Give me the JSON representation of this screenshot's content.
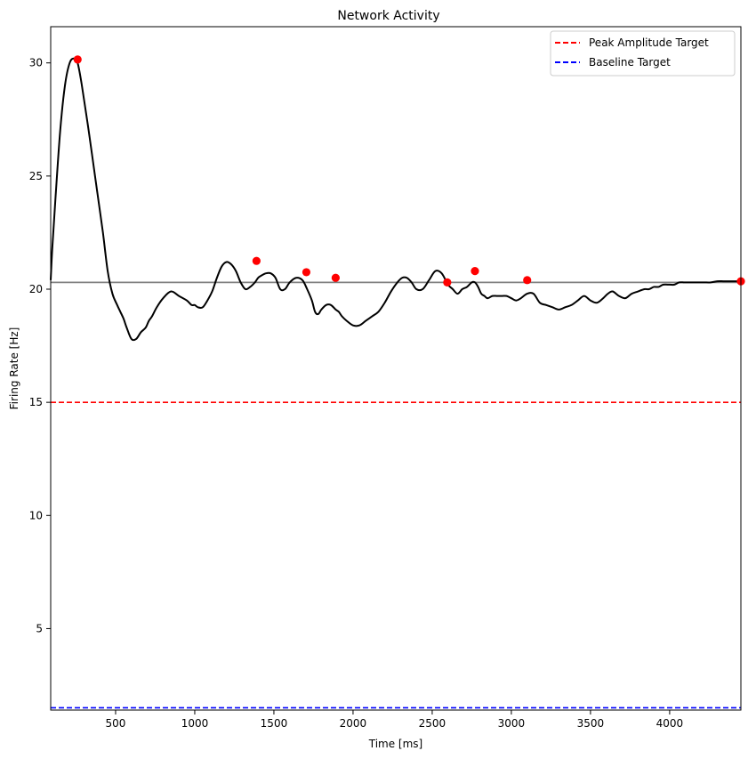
{
  "chart_data": {
    "type": "line",
    "title": "Network Activity",
    "xlabel": "Time [ms]",
    "ylabel": "Firing Rate [Hz]",
    "xlim": [
      90,
      4450
    ],
    "ylim": [
      1.4,
      31.6
    ],
    "xticks": [
      500,
      1000,
      1500,
      2000,
      2500,
      3000,
      3500,
      4000
    ],
    "yticks": [
      5,
      10,
      15,
      20,
      25,
      30
    ],
    "grid": false,
    "legend_position": "top-right",
    "series": [
      {
        "x": [
          90,
          100,
          120,
          150,
          180,
          210,
          240,
          260,
          280,
          300,
          330,
          360,
          390,
          420,
          450,
          480,
          510,
          530,
          550,
          570,
          600,
          630,
          660,
          690,
          710,
          730,
          760,
          800,
          850,
          900,
          950,
          980,
          1000,
          1020,
          1050,
          1080,
          1110,
          1140,
          1170,
          1200,
          1230,
          1260,
          1290,
          1320,
          1350,
          1380,
          1400,
          1420,
          1450,
          1480,
          1510,
          1540,
          1570,
          1600,
          1640,
          1680,
          1710,
          1740,
          1760,
          1780,
          1800,
          1830,
          1860,
          1890,
          1910,
          1930,
          1960,
          2000,
          2040,
          2080,
          2120,
          2160,
          2200,
          2240,
          2280,
          2310,
          2340,
          2370,
          2400,
          2440,
          2480,
          2520,
          2560,
          2600,
          2630,
          2660,
          2690,
          2720,
          2750,
          2770,
          2790,
          2810,
          2830,
          2850,
          2880,
          2910,
          2940,
          2970,
          3000,
          3030,
          3060,
          3100,
          3140,
          3180,
          3220,
          3260,
          3300,
          3340,
          3380,
          3420,
          3460,
          3500,
          3540,
          3580,
          3610,
          3640,
          3680,
          3720,
          3760,
          3800,
          3840,
          3870,
          3900,
          3930,
          3960,
          4000,
          4030,
          4060,
          4090,
          4110,
          4130,
          4160,
          4190,
          4220,
          4260,
          4300,
          4340,
          4380,
          4420,
          4450
        ],
        "values": [
          20.4,
          21.8,
          24.0,
          27.0,
          29.0,
          30.0,
          30.2,
          30.0,
          29.3,
          28.4,
          27.0,
          25.5,
          24.0,
          22.5,
          20.8,
          19.8,
          19.3,
          19.0,
          18.7,
          18.3,
          17.8,
          17.8,
          18.1,
          18.3,
          18.6,
          18.8,
          19.2,
          19.6,
          19.9,
          19.7,
          19.5,
          19.3,
          19.3,
          19.2,
          19.2,
          19.5,
          19.9,
          20.5,
          21.0,
          21.2,
          21.1,
          20.8,
          20.3,
          20.0,
          20.1,
          20.3,
          20.5,
          20.6,
          20.7,
          20.7,
          20.5,
          20.0,
          20.0,
          20.3,
          20.5,
          20.4,
          20.0,
          19.5,
          19.0,
          18.9,
          19.1,
          19.3,
          19.3,
          19.1,
          19.0,
          18.8,
          18.6,
          18.4,
          18.4,
          18.6,
          18.8,
          19.0,
          19.4,
          19.9,
          20.3,
          20.5,
          20.5,
          20.3,
          20.0,
          20.0,
          20.4,
          20.8,
          20.7,
          20.2,
          20.0,
          19.8,
          20.0,
          20.1,
          20.3,
          20.3,
          20.1,
          19.8,
          19.7,
          19.6,
          19.7,
          19.7,
          19.7,
          19.7,
          19.6,
          19.5,
          19.6,
          19.8,
          19.8,
          19.4,
          19.3,
          19.2,
          19.1,
          19.2,
          19.3,
          19.5,
          19.7,
          19.5,
          19.4,
          19.6,
          19.8,
          19.9,
          19.7,
          19.6,
          19.8,
          19.9,
          20.0,
          20.0,
          20.1,
          20.1,
          20.2,
          20.2,
          20.2,
          20.3,
          20.3,
          20.3,
          20.3,
          20.3,
          20.3,
          20.3,
          20.3,
          20.35,
          20.35,
          20.35,
          20.35,
          20.35
        ],
        "color": "#000000"
      }
    ],
    "peaks": {
      "x": [
        260,
        1390,
        1705,
        1890,
        2595,
        2770,
        3100,
        4450
      ],
      "values": [
        30.15,
        21.25,
        20.75,
        20.5,
        20.3,
        20.8,
        20.4,
        20.35
      ],
      "color": "#ff0000"
    },
    "reference_lines": [
      {
        "name": "Peak Amplitude Target",
        "y": 15.0,
        "color": "#ff0000",
        "style": "dashed"
      },
      {
        "name": "Baseline Target",
        "y": 1.5,
        "color": "#0000ff",
        "style": "dashed"
      },
      {
        "y": 20.3,
        "color": "#808080",
        "style": "solid"
      }
    ]
  }
}
